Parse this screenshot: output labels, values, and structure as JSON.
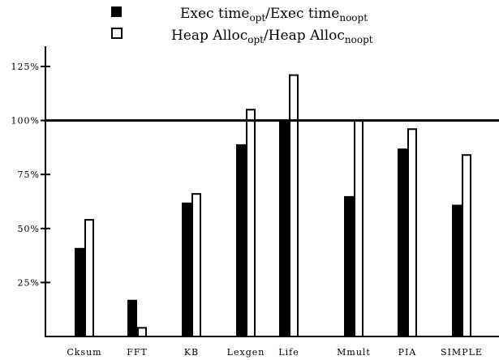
{
  "chart_data": {
    "type": "bar",
    "categories": [
      "Cksum",
      "FFT",
      "KB",
      "Lexgen",
      "Life",
      "Mmult",
      "PIA",
      "SIMPLE"
    ],
    "series": [
      {
        "name": "Exec time_opt / Exec time_noopt",
        "legend": {
          "base": "Exec time",
          "sub1": "opt",
          "mid": "/Exec time",
          "sub2": "noopt"
        },
        "values": [
          41,
          17,
          62,
          89,
          100,
          65,
          87,
          61
        ],
        "color": "#000000",
        "fill": "solid"
      },
      {
        "name": "Heap Alloc_opt / Heap Alloc_noopt",
        "legend": {
          "base": "Heap Alloc",
          "sub1": "opt",
          "mid": "/Heap Alloc",
          "sub2": "noopt"
        },
        "values": [
          54,
          4,
          66,
          105,
          121,
          100,
          96,
          84
        ],
        "color": "#000000",
        "fill": "hollow"
      }
    ],
    "yticks": [
      "25%",
      "50%",
      "75%",
      "100%",
      "125%"
    ],
    "ytick_values": [
      25,
      50,
      75,
      100,
      125
    ],
    "reference_line": 100,
    "ylim": [
      0,
      134
    ],
    "grid": false,
    "legend_position": "top"
  }
}
